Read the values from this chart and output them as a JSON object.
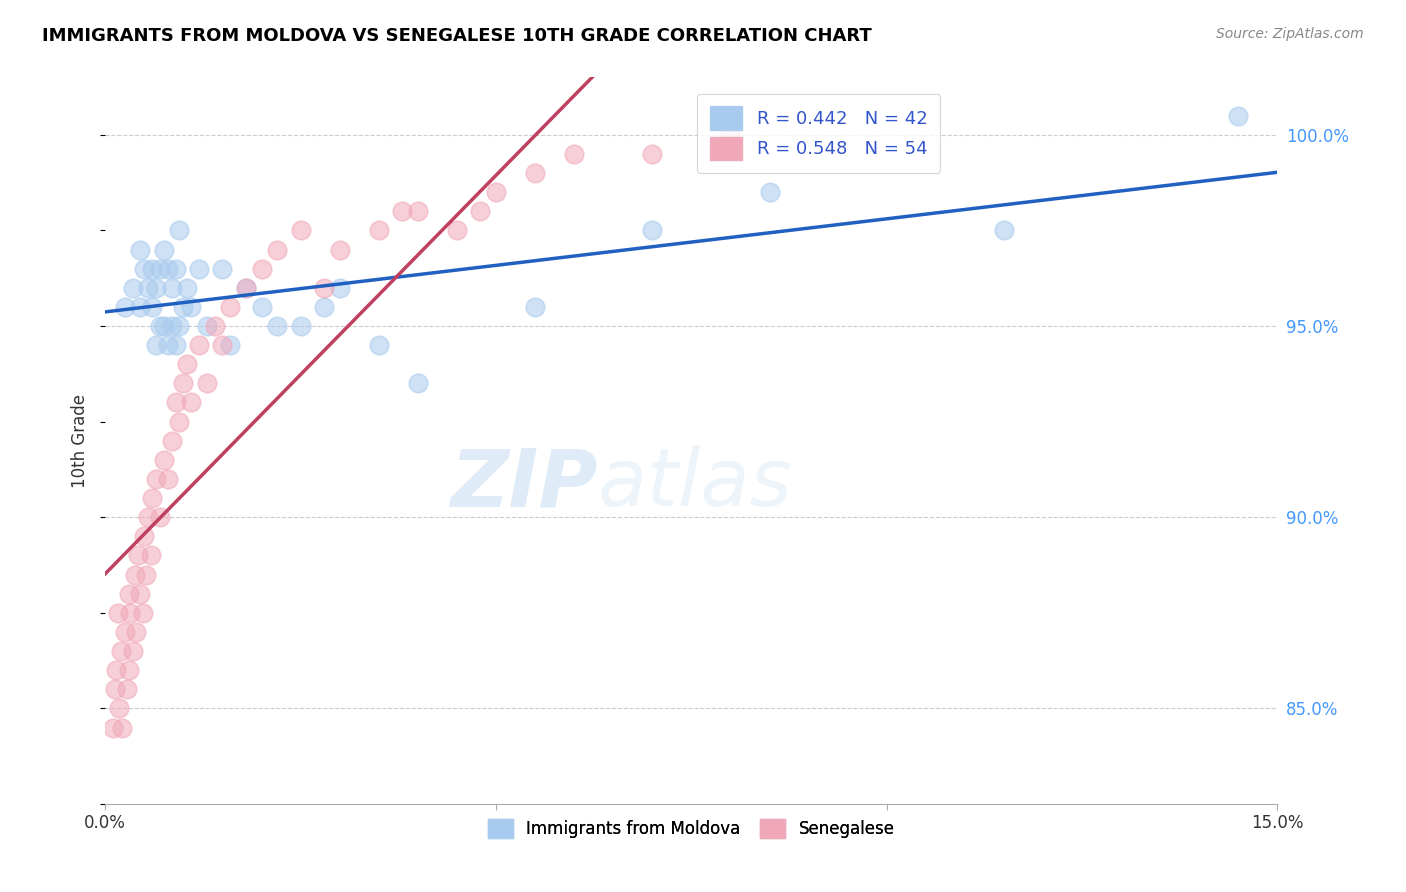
{
  "title": "IMMIGRANTS FROM MOLDOVA VS SENEGALESE 10TH GRADE CORRELATION CHART",
  "source": "Source: ZipAtlas.com",
  "ylabel": "10th Grade",
  "xlim": [
    0.0,
    15.0
  ],
  "ylim": [
    82.5,
    101.5
  ],
  "y_ticks_right": [
    85.0,
    90.0,
    95.0,
    100.0
  ],
  "y_tick_labels_right": [
    "85.0%",
    "90.0%",
    "95.0%",
    "100.0%"
  ],
  "legend_blue_label": "R = 0.442   N = 42",
  "legend_pink_label": "R = 0.548   N = 54",
  "blue_color": "#A8CAEE",
  "pink_color": "#F0A8B8",
  "blue_line_color": "#2060C0",
  "pink_line_color": "#C04060",
  "watermark_zip": "ZIP",
  "watermark_atlas": "atlas",
  "legend_bottom_blue": "Immigrants from Moldova",
  "legend_bottom_pink": "Senegalese",
  "blue_x": [
    0.25,
    0.35,
    0.45,
    0.45,
    0.5,
    0.55,
    0.6,
    0.6,
    0.65,
    0.65,
    0.7,
    0.7,
    0.75,
    0.75,
    0.8,
    0.8,
    0.85,
    0.85,
    0.9,
    0.9,
    0.95,
    0.95,
    1.0,
    1.05,
    1.1,
    1.2,
    1.3,
    1.5,
    1.6,
    1.8,
    2.0,
    2.2,
    2.5,
    2.8,
    3.0,
    3.5,
    4.0,
    5.5,
    7.0,
    8.5,
    11.5,
    14.5
  ],
  "blue_y": [
    95.5,
    96.0,
    95.5,
    97.0,
    96.5,
    96.0,
    95.5,
    96.5,
    94.5,
    96.0,
    95.0,
    96.5,
    95.0,
    97.0,
    94.5,
    96.5,
    95.0,
    96.0,
    94.5,
    96.5,
    95.0,
    97.5,
    95.5,
    96.0,
    95.5,
    96.5,
    95.0,
    96.5,
    94.5,
    96.0,
    95.5,
    95.0,
    95.0,
    95.5,
    96.0,
    94.5,
    93.5,
    95.5,
    97.5,
    98.5,
    97.5,
    100.5
  ],
  "pink_x": [
    0.1,
    0.12,
    0.14,
    0.16,
    0.18,
    0.2,
    0.22,
    0.25,
    0.28,
    0.3,
    0.3,
    0.32,
    0.35,
    0.38,
    0.4,
    0.42,
    0.45,
    0.48,
    0.5,
    0.52,
    0.55,
    0.58,
    0.6,
    0.65,
    0.7,
    0.75,
    0.8,
    0.85,
    0.9,
    0.95,
    1.0,
    1.05,
    1.1,
    1.2,
    1.3,
    1.4,
    1.5,
    1.6,
    1.8,
    2.0,
    2.2,
    2.5,
    2.8,
    3.0,
    3.5,
    3.8,
    4.0,
    4.5,
    4.8,
    5.0,
    5.5,
    6.0,
    7.0,
    8.0
  ],
  "pink_y": [
    84.5,
    85.5,
    86.0,
    87.5,
    85.0,
    86.5,
    84.5,
    87.0,
    85.5,
    86.0,
    88.0,
    87.5,
    86.5,
    88.5,
    87.0,
    89.0,
    88.0,
    87.5,
    89.5,
    88.5,
    90.0,
    89.0,
    90.5,
    91.0,
    90.0,
    91.5,
    91.0,
    92.0,
    93.0,
    92.5,
    93.5,
    94.0,
    93.0,
    94.5,
    93.5,
    95.0,
    94.5,
    95.5,
    96.0,
    96.5,
    97.0,
    97.5,
    96.0,
    97.0,
    97.5,
    98.0,
    98.0,
    97.5,
    98.0,
    98.5,
    99.0,
    99.5,
    99.5,
    100.0
  ]
}
